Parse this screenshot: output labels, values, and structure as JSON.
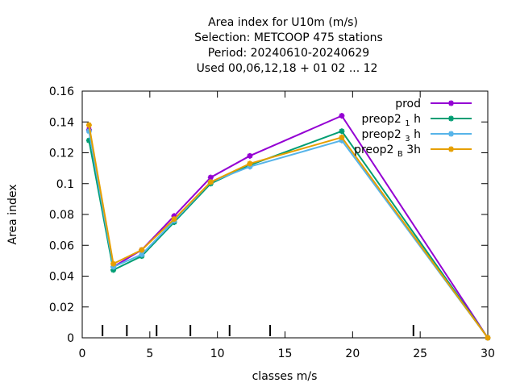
{
  "chart_data": {
    "type": "line",
    "title_lines": [
      "Area index  for U10m (m/s)",
      "Selection: METCOOP    475 stations",
      "Period: 20240610-20240629",
      "Used  00,06,12,18 + 01 02 ... 12"
    ],
    "xlabel": "classes m/s",
    "ylabel": "Area index",
    "xlim": [
      0,
      30
    ],
    "ylim": [
      0,
      0.16
    ],
    "xticks": [
      0,
      5,
      10,
      15,
      20,
      25,
      30
    ],
    "xtick_labels": [
      "0",
      "5",
      "10",
      "15",
      "20",
      "25",
      "30"
    ],
    "yticks": [
      0,
      0.02,
      0.04,
      0.06,
      0.08,
      0.1,
      0.12,
      0.14,
      0.16
    ],
    "ytick_labels": [
      "0",
      "0.02",
      "0.04",
      "0.06",
      "0.08",
      "0.1",
      "0.12",
      "0.14",
      "0.16"
    ],
    "class_marks_x": [
      1.5,
      3.3,
      5.5,
      8.0,
      10.9,
      13.9,
      24.5
    ],
    "grid": false,
    "legend_position": "top-right",
    "series": [
      {
        "name": "prod",
        "legend": {
          "main": "prod",
          "sub": "",
          "tail": ""
        },
        "color": "#9400d3",
        "x": [
          0.5,
          2.3,
          4.4,
          6.8,
          9.5,
          12.4,
          19.2,
          30
        ],
        "y": [
          0.135,
          0.046,
          0.057,
          0.079,
          0.104,
          0.118,
          0.144,
          0.0
        ]
      },
      {
        "name": "preop2 1 h",
        "legend": {
          "main": "preop2 ",
          "sub": "1",
          "tail": " h"
        },
        "color": "#009e73",
        "x": [
          0.5,
          2.3,
          4.4,
          6.8,
          9.5,
          12.4,
          19.2,
          30
        ],
        "y": [
          0.128,
          0.044,
          0.053,
          0.075,
          0.1,
          0.112,
          0.134,
          0.0
        ]
      },
      {
        "name": "preop2 3 h",
        "legend": {
          "main": "preop2 ",
          "sub": "3",
          "tail": " h"
        },
        "color": "#56b4e9",
        "x": [
          0.5,
          2.3,
          4.4,
          6.8,
          9.5,
          12.4,
          19.2,
          30
        ],
        "y": [
          0.134,
          0.046,
          0.054,
          0.076,
          0.101,
          0.111,
          0.128,
          0.0
        ]
      },
      {
        "name": "preop2 B 3h",
        "legend": {
          "main": "preop2 ",
          "sub": "B",
          "tail": " 3h"
        },
        "color": "#e69f00",
        "x": [
          0.5,
          2.3,
          4.4,
          6.8,
          9.5,
          12.4,
          19.2,
          30
        ],
        "y": [
          0.138,
          0.048,
          0.057,
          0.077,
          0.101,
          0.113,
          0.13,
          0.0
        ]
      }
    ]
  }
}
